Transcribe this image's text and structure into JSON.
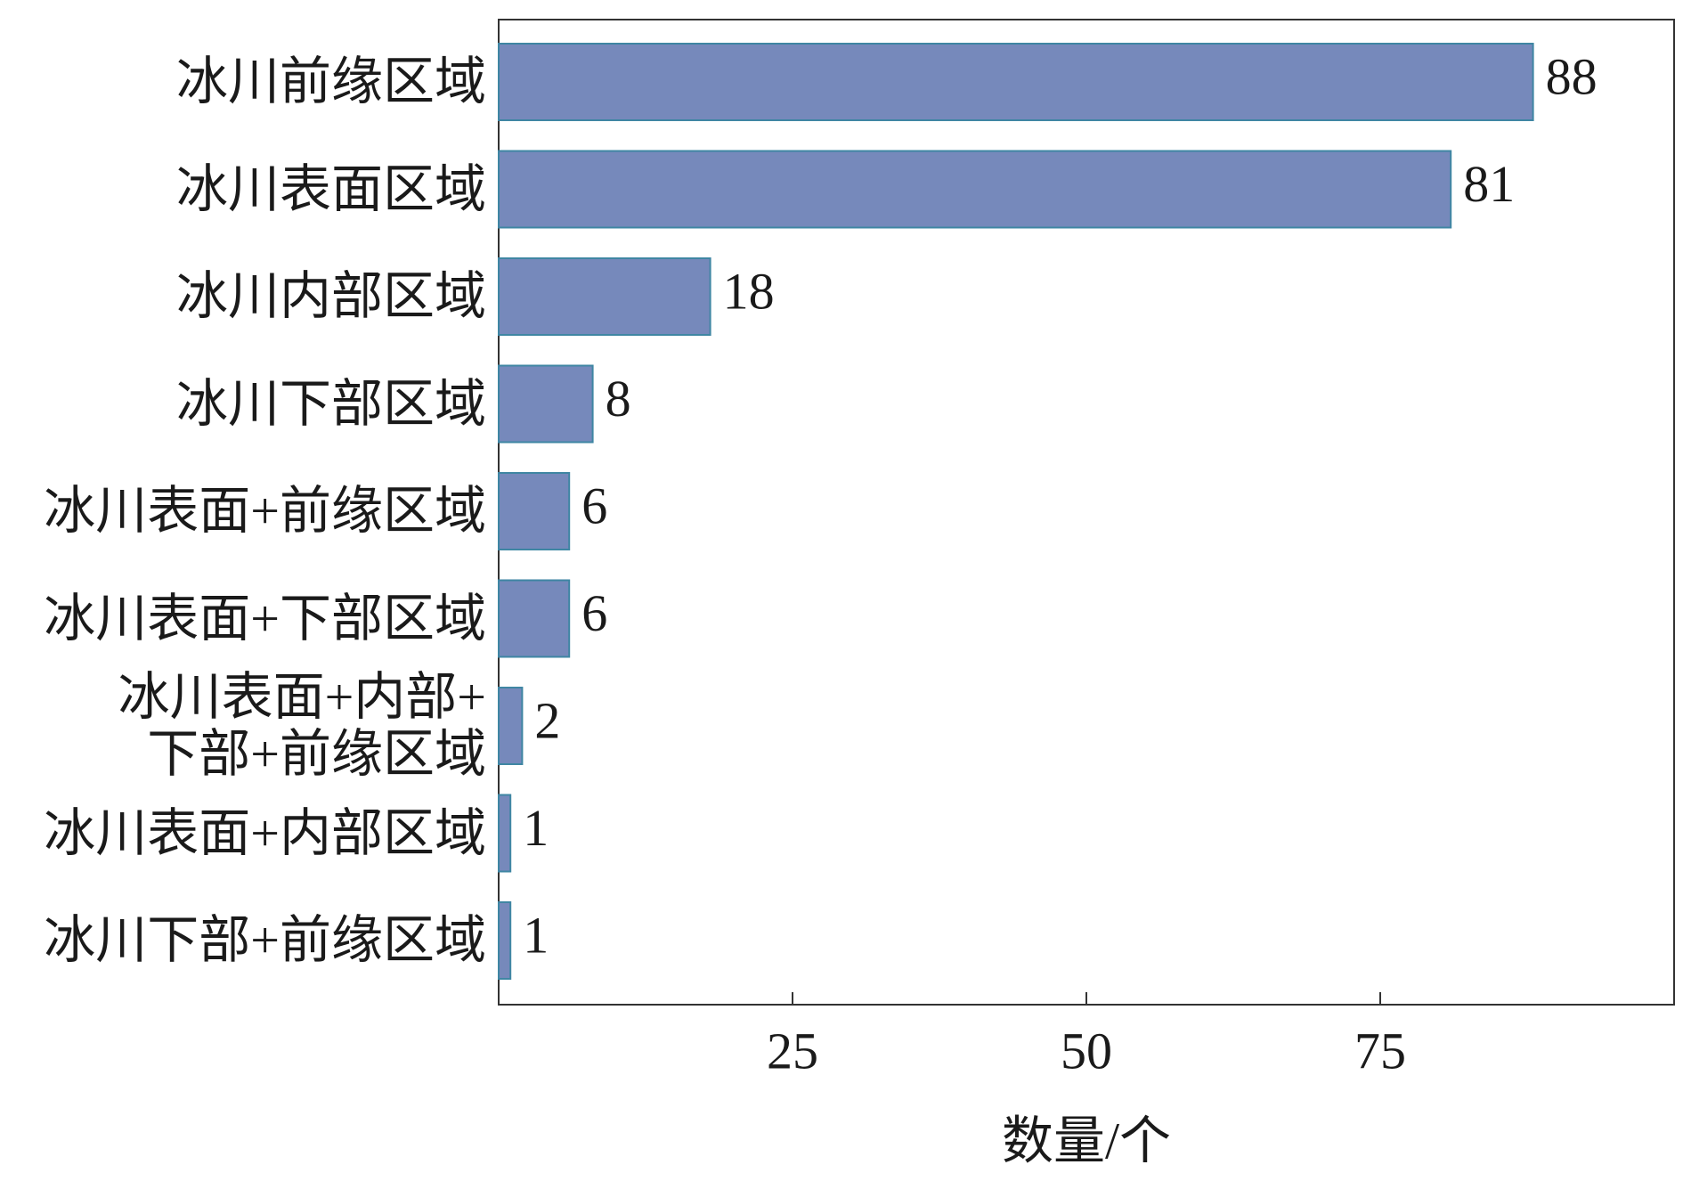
{
  "chart_data": {
    "type": "barh",
    "categories": [
      "冰川前缘区域",
      "冰川表面区域",
      "冰川内部区域",
      "冰川下部区域",
      "冰川表面+前缘区域",
      "冰川表面+下部区域",
      "冰川表面+内部+\n下部+前缘区域",
      "冰川表面+内部区域",
      "冰川下部+前缘区域"
    ],
    "values": [
      88,
      81,
      18,
      8,
      6,
      6,
      2,
      1,
      1
    ],
    "color": "#7689bb",
    "xlabel": "数量/个",
    "xlim": [
      0,
      100
    ],
    "xticks": [
      25,
      50,
      75
    ],
    "grid": false
  }
}
